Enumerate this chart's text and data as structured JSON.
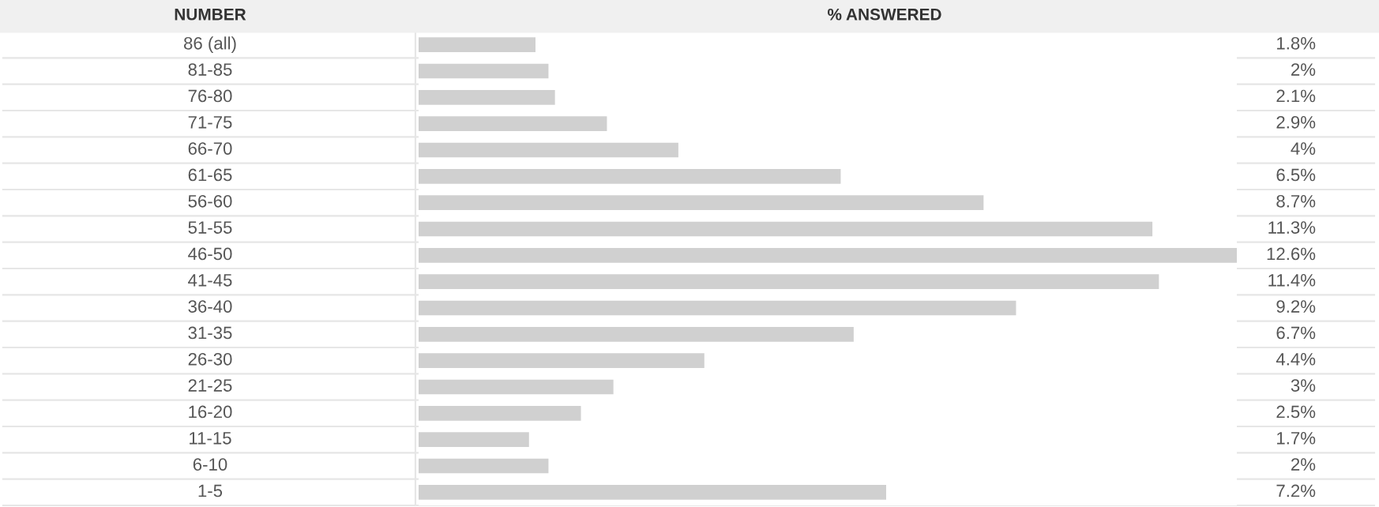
{
  "chart_data": {
    "type": "bar",
    "orientation": "horizontal",
    "ylabel": "NUMBER",
    "xlabel": "% ANSWERED",
    "categories": [
      "86 (all)",
      "81-85",
      "76-80",
      "71-75",
      "66-70",
      "61-65",
      "56-60",
      "51-55",
      "46-50",
      "41-45",
      "36-40",
      "31-35",
      "26-30",
      "21-25",
      "16-20",
      "11-15",
      "6-10",
      "1-5"
    ],
    "values": [
      1.8,
      2,
      2.1,
      2.9,
      4,
      6.5,
      8.7,
      11.3,
      12.6,
      11.4,
      9.2,
      6.7,
      4.4,
      3,
      2.5,
      1.7,
      2,
      7.2
    ],
    "value_labels": [
      "1.8%",
      "2%",
      "2.1%",
      "2.9%",
      "4%",
      "6.5%",
      "8.7%",
      "11.3%",
      "12.6%",
      "11.4%",
      "9.2%",
      "6.7%",
      "4.4%",
      "3%",
      "2.5%",
      "1.7%",
      "2%",
      "7.2%"
    ],
    "color": "#d0d0d0"
  }
}
